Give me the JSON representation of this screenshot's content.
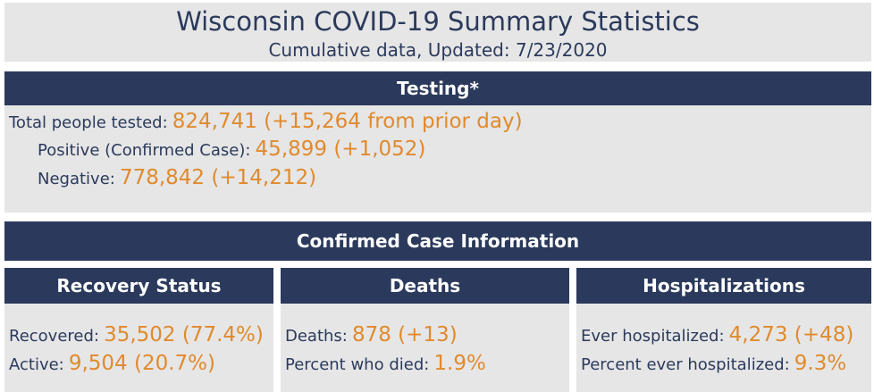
{
  "header": {
    "title": "Wisconsin COVID-19 Summary Statistics",
    "subtitle": "Cumulative data, Updated: 7/23/2020"
  },
  "testing": {
    "heading": "Testing*",
    "total_label": "Total people tested:",
    "total_value": "824,741 (+15,264 from prior day)",
    "positive_label": "Positive (Confirmed Case):",
    "positive_value": "45,899 (+1,052)",
    "negative_label": "Negative:",
    "negative_value": "778,842 (+14,212)"
  },
  "confirmed": {
    "heading": "Confirmed Case Information",
    "recovery": {
      "heading": "Recovery Status",
      "recovered_label": "Recovered:",
      "recovered_value": "35,502 (77.4%)",
      "active_label": "Active:",
      "active_value": "9,504 (20.7%)"
    },
    "deaths": {
      "heading": "Deaths",
      "deaths_label": "Deaths:",
      "deaths_value": "878 (+13)",
      "percent_label": "Percent who died:",
      "percent_value": "1.9%"
    },
    "hospitalizations": {
      "heading": "Hospitalizations",
      "ever_label": "Ever hospitalized:",
      "ever_value": "4,273 (+48)",
      "percent_label": "Percent ever hospitalized:",
      "percent_value": "9.3%"
    }
  },
  "colors": {
    "header_bar": "#2b3a5c",
    "panel_bg": "#e6e6e6",
    "value_accent": "#e08a2e"
  }
}
